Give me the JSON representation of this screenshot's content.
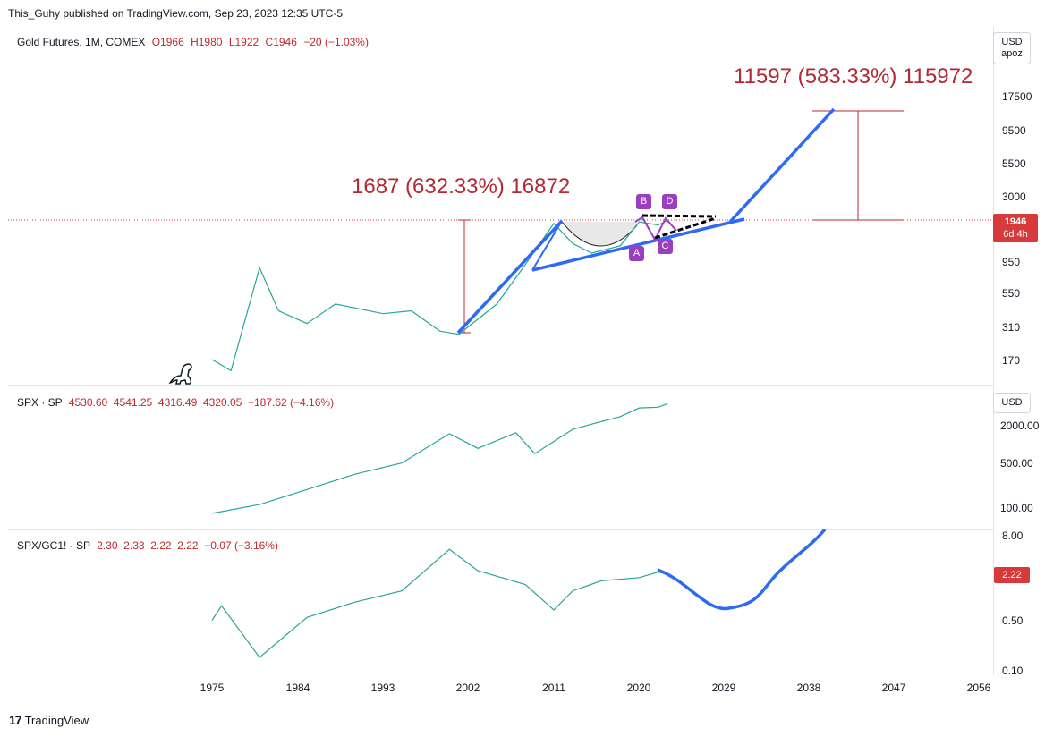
{
  "header": {
    "published": "This_Guhy published on TradingView.com, Sep 23, 2023 12:35 UTC-5"
  },
  "footer": {
    "brand": "TradingView",
    "logo": "tv-logo-icon"
  },
  "panels": [
    {
      "label": "Gold Futures, 1M, COMEX",
      "ohlc_o": "O1966",
      "ohlc_h": "H1980",
      "ohlc_l": "L1922",
      "ohlc_c": "C1946",
      "change": "−20 (−1.03%)",
      "unit": "USD",
      "unit2": "apoz",
      "y_ticks": [
        "17500",
        "9500",
        "5500",
        "3000",
        "950",
        "550",
        "310",
        "170"
      ],
      "price_tag": "1946",
      "price_tag_sub": "6d 4h"
    },
    {
      "label": "SPX · SP",
      "values": "4530.60  4541.25  4316.49  4320.05  −187.62 (−4.16%)",
      "unit": "USD",
      "y_ticks": [
        "2000.00",
        "500.00",
        "100.00"
      ]
    },
    {
      "label": "SPX/GC1! · SP",
      "values": "2.30  2.33  2.22  2.22  −0.07 (−3.16%)",
      "y_ticks": [
        "8.00",
        "0.50",
        "0.10"
      ],
      "price_tag": "2.22"
    }
  ],
  "annotations": {
    "measure1": "1687 (632.33%) 16872",
    "measure2": "11597 (583.33%) 115972",
    "points": [
      "A",
      "B",
      "C",
      "D"
    ]
  },
  "colors": {
    "up": "#26a69a",
    "down": "#ef5350",
    "trend": "#2f6bf0",
    "label": "#b22833",
    "pattern": "#9b3fc1"
  },
  "chart_data": [
    {
      "type": "line",
      "series_desc": "Gold Futures monthly (approx.)",
      "x": [
        1975,
        1977,
        1980,
        1982,
        1985,
        1988,
        1993,
        1996,
        1999,
        2001,
        2005,
        2008,
        2011,
        2013,
        2015,
        2018,
        2020,
        2022,
        2023
      ],
      "y": [
        170,
        140,
        850,
        400,
        320,
        450,
        380,
        400,
        280,
        265,
        450,
        900,
        1850,
        1300,
        1100,
        1250,
        1900,
        1800,
        1946
      ],
      "scale": "log"
    },
    {
      "type": "line",
      "series_desc": "SPX monthly (approx.)",
      "x": [
        1975,
        1980,
        1985,
        1990,
        1995,
        2000,
        2003,
        2007,
        2009,
        2013,
        2015,
        2018,
        2020,
        2022,
        2023
      ],
      "y": [
        80,
        110,
        190,
        330,
        500,
        1450,
        850,
        1500,
        700,
        1700,
        2050,
        2700,
        3700,
        3800,
        4320
      ],
      "scale": "log"
    },
    {
      "type": "line",
      "series_desc": "SPX/GC1! ratio monthly (approx.)",
      "x": [
        1975,
        1976,
        1980,
        1985,
        1990,
        1995,
        2000,
        2003,
        2008,
        2011,
        2013,
        2016,
        2020,
        2022,
        2023
      ],
      "y": [
        0.5,
        0.8,
        0.15,
        0.55,
        0.9,
        1.3,
        5.0,
        2.5,
        1.6,
        0.7,
        1.3,
        1.8,
        2.0,
        2.4,
        2.22
      ],
      "scale": "log"
    }
  ],
  "x_axis": {
    "ticks": [
      "1975",
      "1984",
      "1993",
      "2002",
      "2011",
      "2020",
      "2029",
      "2038",
      "2047",
      "2056"
    ]
  }
}
